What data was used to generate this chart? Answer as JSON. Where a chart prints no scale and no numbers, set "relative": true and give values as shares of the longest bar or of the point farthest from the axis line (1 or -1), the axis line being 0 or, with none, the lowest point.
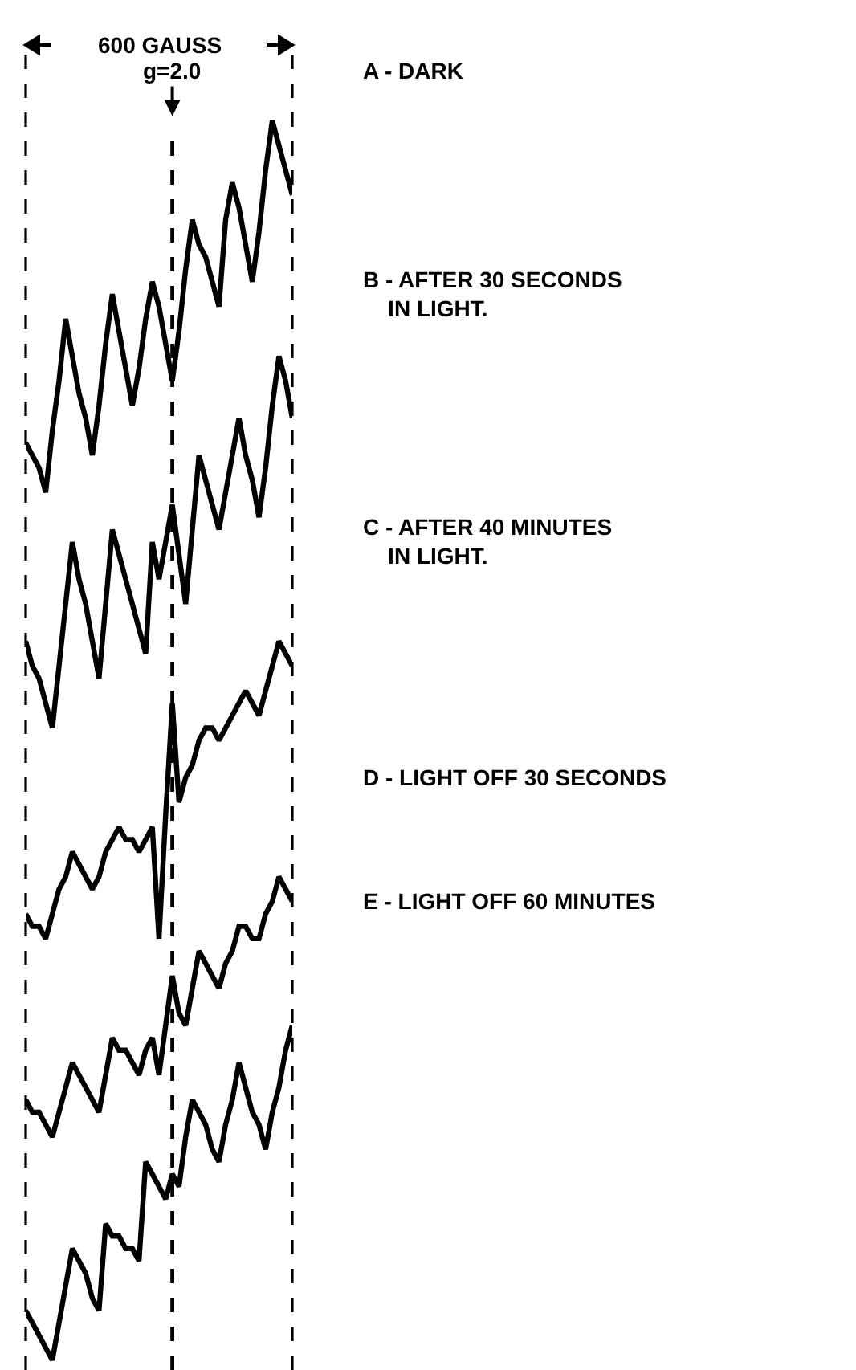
{
  "chart_data": {
    "type": "line",
    "relative": true,
    "legend": false,
    "marker": "none",
    "line_style": "solid",
    "categories": [
      null,
      null,
      null,
      null,
      null,
      null,
      null,
      null,
      null,
      null,
      null,
      null,
      null,
      null,
      null,
      null,
      null,
      null,
      null,
      null,
      null,
      null,
      null,
      null,
      null,
      null,
      null,
      null,
      null,
      null,
      null,
      null,
      null,
      null,
      null,
      null,
      null,
      null,
      null,
      null,
      null
    ],
    "annotations": [
      "600 GAUSS",
      "g=2.0"
    ],
    "series": [
      {
        "name": "A - DARK",
        "color": "#000000",
        "values": [
          0.74,
          0.73,
          0.72,
          0.7,
          0.75,
          0.79,
          0.84,
          0.81,
          0.78,
          0.76,
          0.73,
          0.77,
          0.82,
          0.86,
          0.83,
          0.8,
          0.77,
          0.8,
          0.84,
          0.87,
          0.85,
          0.82,
          0.79,
          0.83,
          0.88,
          0.92,
          0.9,
          0.89,
          0.87,
          0.85,
          0.92,
          0.95,
          0.93,
          0.9,
          0.87,
          0.91,
          0.96,
          1.0,
          0.98,
          0.96,
          0.94
        ]
      },
      {
        "name": "B - AFTER 30 SECONDS\nIN LIGHT.",
        "color": "#000000",
        "values": [
          0.58,
          0.56,
          0.55,
          0.53,
          0.51,
          0.56,
          0.61,
          0.66,
          0.63,
          0.61,
          0.58,
          0.55,
          0.61,
          0.67,
          0.65,
          0.63,
          0.61,
          0.59,
          0.57,
          0.66,
          0.63,
          0.66,
          0.69,
          0.65,
          0.61,
          0.67,
          0.73,
          0.71,
          0.69,
          0.67,
          0.7,
          0.73,
          0.76,
          0.73,
          0.71,
          0.68,
          0.72,
          0.77,
          0.81,
          0.79,
          0.76
        ]
      },
      {
        "name": "C - AFTER 40 MINUTES\nIN LIGHT.",
        "color": "#000000",
        "values": [
          0.36,
          0.35,
          0.35,
          0.34,
          0.36,
          0.38,
          0.39,
          0.41,
          0.4,
          0.39,
          0.38,
          0.39,
          0.41,
          0.42,
          0.43,
          0.42,
          0.42,
          0.41,
          0.42,
          0.43,
          0.34,
          0.44,
          0.53,
          0.45,
          0.47,
          0.48,
          0.5,
          0.51,
          0.51,
          0.5,
          0.51,
          0.52,
          0.53,
          0.54,
          0.53,
          0.52,
          0.54,
          0.56,
          0.58,
          0.57,
          0.56
        ]
      },
      {
        "name": "D - LIGHT OFF 30 SECONDS",
        "color": "#000000",
        "values": [
          0.21,
          0.2,
          0.2,
          0.19,
          0.18,
          0.2,
          0.22,
          0.24,
          0.23,
          0.22,
          0.21,
          0.2,
          0.23,
          0.26,
          0.25,
          0.25,
          0.24,
          0.23,
          0.25,
          0.26,
          0.23,
          0.27,
          0.31,
          0.28,
          0.27,
          0.3,
          0.33,
          0.32,
          0.31,
          0.3,
          0.32,
          0.33,
          0.35,
          0.35,
          0.34,
          0.34,
          0.36,
          0.37,
          0.39,
          0.38,
          0.37
        ]
      },
      {
        "name": "E - LIGHT OFF 60 MINUTES",
        "color": "#000000",
        "values": [
          0.04,
          0.03,
          0.02,
          0.01,
          0,
          0.03,
          0.06,
          0.09,
          0.08,
          0.07,
          0.05,
          0.04,
          0.11,
          0.1,
          0.1,
          0.09,
          0.09,
          0.08,
          0.16,
          0.15,
          0.14,
          0.13,
          0.15,
          0.14,
          0.18,
          0.21,
          0.2,
          0.19,
          0.17,
          0.16,
          0.19,
          0.21,
          0.24,
          0.22,
          0.2,
          0.19,
          0.17,
          0.2,
          0.22,
          0.25,
          0.27
        ]
      }
    ]
  }
}
